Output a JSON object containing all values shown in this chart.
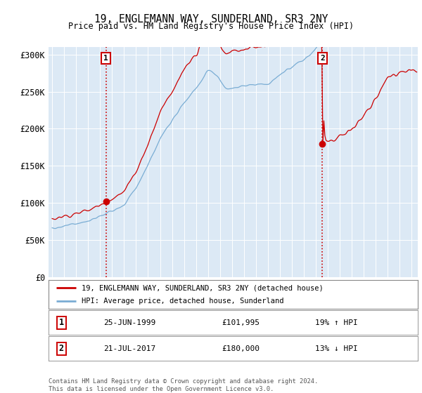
{
  "title": "19, ENGLEMANN WAY, SUNDERLAND, SR3 2NY",
  "subtitle": "Price paid vs. HM Land Registry's House Price Index (HPI)",
  "ylim": [
    0,
    310000
  ],
  "yticks": [
    0,
    50000,
    100000,
    150000,
    200000,
    250000,
    300000
  ],
  "ytick_labels": [
    "£0",
    "£50K",
    "£100K",
    "£150K",
    "£200K",
    "£250K",
    "£300K"
  ],
  "bg_color": "#dce9f5",
  "legend_line1": "19, ENGLEMANN WAY, SUNDERLAND, SR3 2NY (detached house)",
  "legend_line2": "HPI: Average price, detached house, Sunderland",
  "sale1_date": "25-JUN-1999",
  "sale1_price": "£101,995",
  "sale1_hpi": "19% ↑ HPI",
  "sale2_date": "21-JUL-2017",
  "sale2_price": "£180,000",
  "sale2_hpi": "13% ↓ HPI",
  "footer": "Contains HM Land Registry data © Crown copyright and database right 2024.\nThis data is licensed under the Open Government Licence v3.0.",
  "sale1_x": 1999.49,
  "sale2_x": 2017.55,
  "sale1_y": 101995,
  "sale2_y": 180000,
  "line1_color": "#cc0000",
  "line2_color": "#7aadd4",
  "vline_color": "#cc0000",
  "marker_color": "#cc0000",
  "xmin": 1994.7,
  "xmax": 2025.5
}
